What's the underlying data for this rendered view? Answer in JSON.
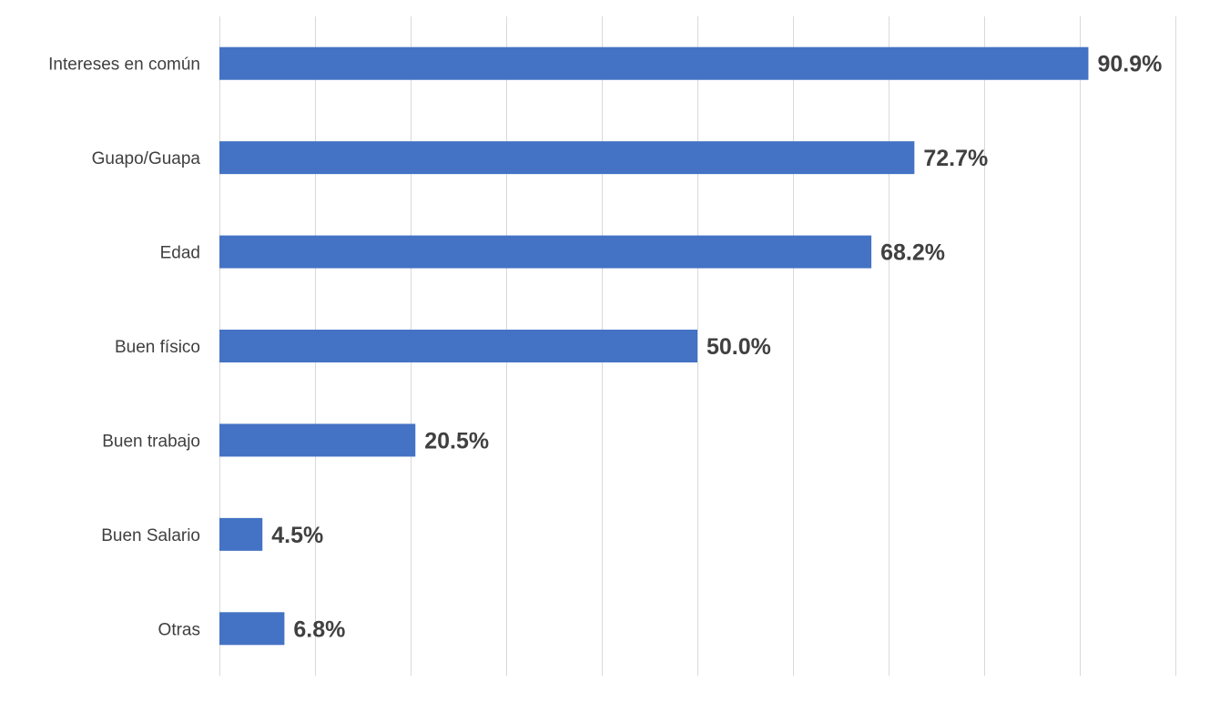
{
  "chart_data": {
    "type": "bar",
    "orientation": "horizontal",
    "categories": [
      "Intereses en común",
      "Guapo/Guapa",
      "Edad",
      "Buen físico",
      "Buen trabajo",
      "Buen Salario",
      "Otras"
    ],
    "values": [
      90.9,
      72.7,
      68.2,
      50.0,
      20.5,
      4.5,
      6.8
    ],
    "value_labels": [
      "90.9%",
      "72.7%",
      "68.2%",
      "50.0%",
      "20.5%",
      "4.5%",
      "6.8%"
    ],
    "unit": "%",
    "xlim": [
      0,
      100
    ],
    "gridlines": true,
    "legend": "none",
    "colors": {
      "bar": "#4472C4"
    }
  }
}
